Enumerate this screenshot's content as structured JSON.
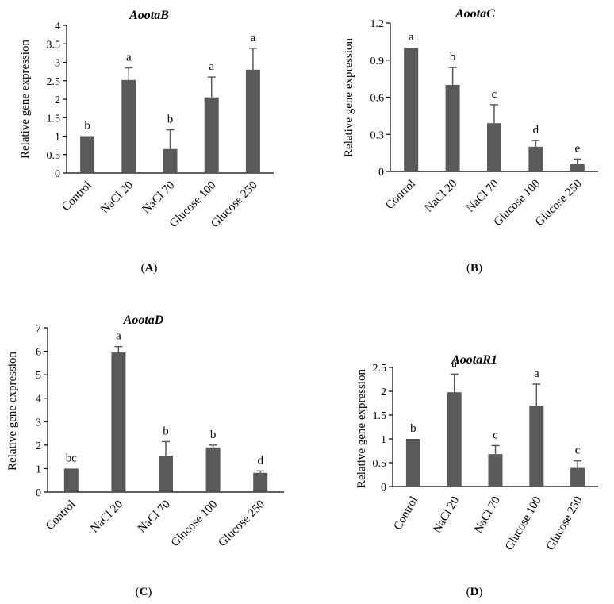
{
  "colors": {
    "bar": "#595959",
    "axis": "#000000",
    "background": "#ffffff"
  },
  "chart_data": [
    {
      "panel_label": "A",
      "type": "bar",
      "title": "AootaB",
      "ylabel": "Relative gene expression",
      "xlabel": "",
      "categories": [
        "Control",
        "NaCl 20",
        "NaCl 70",
        "Glucose 100",
        "Glucose 250"
      ],
      "values": [
        1.0,
        2.52,
        0.65,
        2.05,
        2.8
      ],
      "errors": [
        0.0,
        0.33,
        0.52,
        0.55,
        0.58
      ],
      "significance": [
        "b",
        "a",
        "b",
        "a",
        "a"
      ],
      "ylim": [
        0,
        4
      ],
      "yticks": [
        "0",
        "0.5",
        "1",
        "1.5",
        "2",
        "2.5",
        "3",
        "3.5",
        "4"
      ],
      "grid": false
    },
    {
      "panel_label": "B",
      "type": "bar",
      "title": "AootaC",
      "ylabel": "Relative gene expression",
      "xlabel": "",
      "categories": [
        "Control",
        "NaCl 20",
        "NaCl 70",
        "Glucose 100",
        "Glucose 250"
      ],
      "values": [
        1.0,
        0.7,
        0.39,
        0.2,
        0.06
      ],
      "errors": [
        0.0,
        0.14,
        0.15,
        0.05,
        0.04
      ],
      "significance": [
        "a",
        "b",
        "c",
        "d",
        "e"
      ],
      "ylim": [
        0,
        1.2
      ],
      "yticks": [
        "0",
        "0.3",
        "0.6",
        "0.9",
        "1.2"
      ],
      "grid": false
    },
    {
      "panel_label": "C",
      "type": "bar",
      "title": "AootaD",
      "ylabel": "Relative gene expression",
      "xlabel": "",
      "categories": [
        "Control",
        "NaCl 20",
        "NaCl 70",
        "Glucose 100",
        "Glucose 250"
      ],
      "values": [
        1.0,
        5.95,
        1.55,
        1.9,
        0.82
      ],
      "errors": [
        0.0,
        0.25,
        0.6,
        0.1,
        0.08
      ],
      "significance": [
        "bc",
        "a",
        "b",
        "b",
        "d"
      ],
      "ylim": [
        0,
        7
      ],
      "yticks": [
        "0",
        "1",
        "2",
        "3",
        "4",
        "5",
        "6",
        "7"
      ],
      "grid": false
    },
    {
      "panel_label": "D",
      "type": "bar",
      "title": "AootaR1",
      "ylabel": "Relative gene expression",
      "xlabel": "",
      "categories": [
        "Control",
        "NaCl 20",
        "NaCl 70",
        "Glucose 100",
        "Glucose 250"
      ],
      "values": [
        1.0,
        1.98,
        0.68,
        1.7,
        0.39
      ],
      "errors": [
        0.0,
        0.38,
        0.18,
        0.45,
        0.15
      ],
      "significance": [
        "b",
        "a",
        "c",
        "a",
        "c"
      ],
      "ylim": [
        0,
        2.5
      ],
      "yticks": [
        "0",
        "0.5",
        "1",
        "1.5",
        "2",
        "2.5"
      ],
      "grid": false
    }
  ]
}
